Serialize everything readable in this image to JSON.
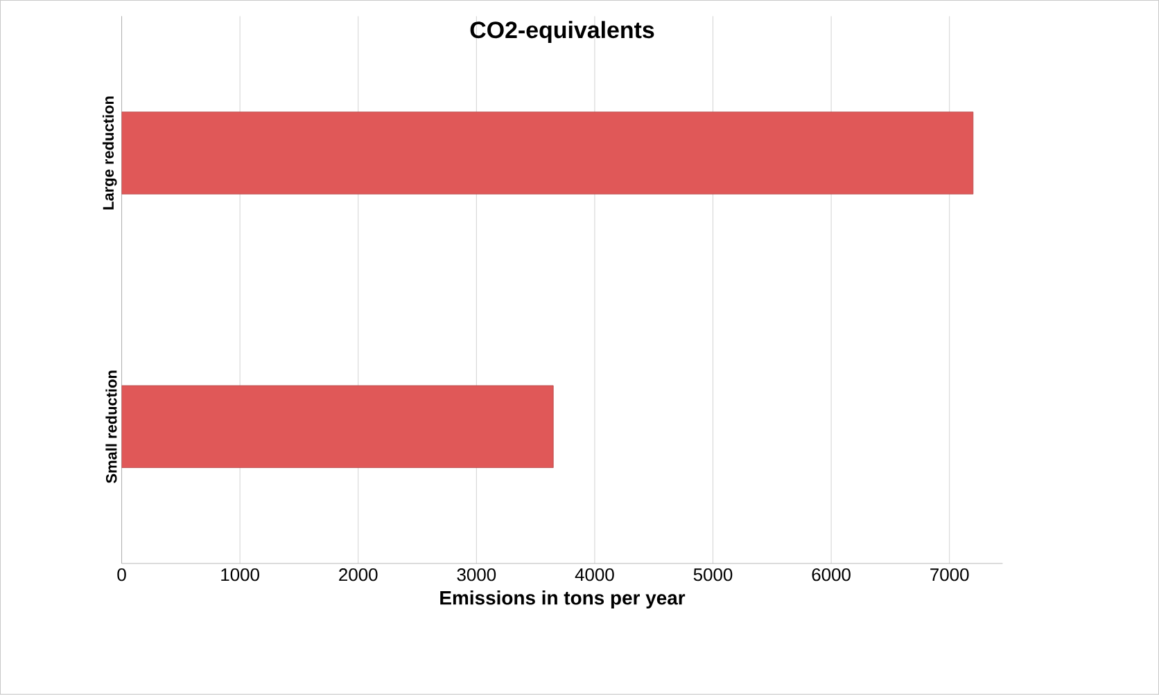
{
  "chart_data": {
    "type": "bar",
    "orientation": "horizontal",
    "title": "CO2-equivalents",
    "xlabel": "Emissions in tons per year",
    "categories": [
      "Large reduction",
      "Small reduction"
    ],
    "values": [
      7200,
      3650
    ],
    "color": "#e05858",
    "xlim": [
      0,
      7450
    ],
    "xticks": [
      0,
      1000,
      2000,
      3000,
      4000,
      5000,
      6000,
      7000
    ],
    "grid": "x"
  }
}
